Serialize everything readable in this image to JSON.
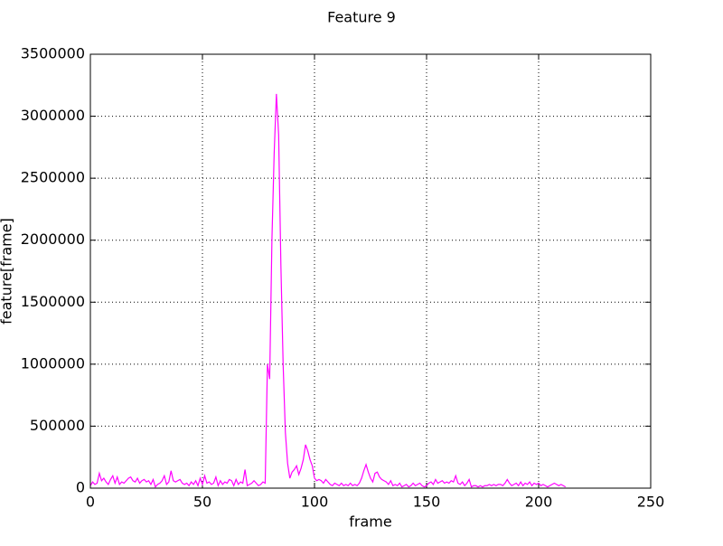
{
  "chart_data": {
    "type": "line",
    "title": "Feature 9",
    "xlabel": "frame",
    "ylabel": "feature[frame]",
    "x": [
      0,
      1,
      2,
      3,
      4,
      5,
      6,
      7,
      8,
      9,
      10,
      11,
      12,
      13,
      14,
      15,
      16,
      17,
      18,
      19,
      20,
      21,
      22,
      23,
      24,
      25,
      26,
      27,
      28,
      29,
      30,
      31,
      32,
      33,
      34,
      35,
      36,
      37,
      38,
      39,
      40,
      41,
      42,
      43,
      44,
      45,
      46,
      47,
      48,
      49,
      50,
      51,
      52,
      53,
      54,
      55,
      56,
      57,
      58,
      59,
      60,
      61,
      62,
      63,
      64,
      65,
      66,
      67,
      68,
      69,
      70,
      71,
      72,
      73,
      74,
      75,
      76,
      77,
      78,
      79,
      80,
      81,
      82,
      83,
      84,
      85,
      86,
      87,
      88,
      89,
      90,
      91,
      92,
      93,
      94,
      95,
      96,
      97,
      98,
      99,
      100,
      101,
      102,
      103,
      104,
      105,
      106,
      107,
      108,
      109,
      110,
      111,
      112,
      113,
      114,
      115,
      116,
      117,
      118,
      119,
      120,
      121,
      122,
      123,
      124,
      125,
      126,
      127,
      128,
      129,
      130,
      131,
      132,
      133,
      134,
      135,
      136,
      137,
      138,
      139,
      140,
      141,
      142,
      143,
      144,
      145,
      146,
      147,
      148,
      149,
      150,
      151,
      152,
      153,
      154,
      155,
      156,
      157,
      158,
      159,
      160,
      161,
      162,
      163,
      164,
      165,
      166,
      167,
      168,
      169,
      170,
      171,
      172,
      173,
      174,
      175,
      176,
      177,
      178,
      179,
      180,
      181,
      182,
      183,
      184,
      185,
      186,
      187,
      188,
      189,
      190,
      191,
      192,
      193,
      194,
      195,
      196,
      197,
      198,
      199,
      200,
      201,
      202,
      203,
      204,
      205,
      206,
      207,
      208,
      209,
      210,
      211,
      212
    ],
    "series": [
      {
        "color": "#ff00ff",
        "values": [
          20000,
          50000,
          30000,
          40000,
          120000,
          60000,
          80000,
          50000,
          30000,
          70000,
          100000,
          40000,
          90000,
          30000,
          50000,
          40000,
          60000,
          80000,
          90000,
          60000,
          50000,
          80000,
          40000,
          60000,
          70000,
          50000,
          60000,
          30000,
          70000,
          10000,
          30000,
          40000,
          60000,
          100000,
          30000,
          50000,
          140000,
          60000,
          50000,
          60000,
          70000,
          40000,
          30000,
          40000,
          20000,
          50000,
          30000,
          60000,
          20000,
          80000,
          30000,
          100000,
          40000,
          50000,
          30000,
          40000,
          90000,
          20000,
          60000,
          30000,
          50000,
          40000,
          70000,
          60000,
          20000,
          70000,
          30000,
          50000,
          40000,
          150000,
          20000,
          30000,
          40000,
          60000,
          40000,
          20000,
          30000,
          50000,
          40000,
          1000000,
          880000,
          2000000,
          2700000,
          3180000,
          2850000,
          1800000,
          1000000,
          450000,
          200000,
          80000,
          130000,
          150000,
          180000,
          110000,
          160000,
          230000,
          350000,
          300000,
          230000,
          180000,
          80000,
          60000,
          70000,
          60000,
          40000,
          70000,
          50000,
          30000,
          20000,
          40000,
          30000,
          20000,
          40000,
          20000,
          30000,
          20000,
          40000,
          20000,
          30000,
          20000,
          40000,
          80000,
          140000,
          190000,
          130000,
          80000,
          50000,
          120000,
          130000,
          90000,
          70000,
          60000,
          50000,
          30000,
          60000,
          20000,
          30000,
          20000,
          40000,
          10000,
          20000,
          30000,
          10000,
          20000,
          40000,
          20000,
          30000,
          40000,
          20000,
          10000,
          20000,
          40000,
          50000,
          30000,
          70000,
          40000,
          50000,
          60000,
          40000,
          50000,
          40000,
          60000,
          50000,
          100000,
          40000,
          30000,
          50000,
          20000,
          40000,
          70000,
          10000,
          20000,
          20000,
          10000,
          20000,
          10000,
          20000,
          20000,
          30000,
          20000,
          30000,
          20000,
          30000,
          30000,
          20000,
          40000,
          70000,
          40000,
          20000,
          30000,
          40000,
          20000,
          50000,
          20000,
          40000,
          30000,
          50000,
          20000,
          40000,
          30000,
          40000,
          20000,
          30000,
          20000,
          10000,
          20000,
          30000,
          40000,
          30000,
          20000,
          30000,
          20000,
          10000
        ]
      }
    ],
    "xlim": [
      0,
      250
    ],
    "xticks": [
      0,
      50,
      100,
      150,
      200,
      250
    ],
    "ylim": [
      0,
      3500000
    ],
    "yticks": [
      0,
      500000,
      1000000,
      1500000,
      2000000,
      2500000,
      3000000,
      3500000
    ],
    "grid": true
  }
}
